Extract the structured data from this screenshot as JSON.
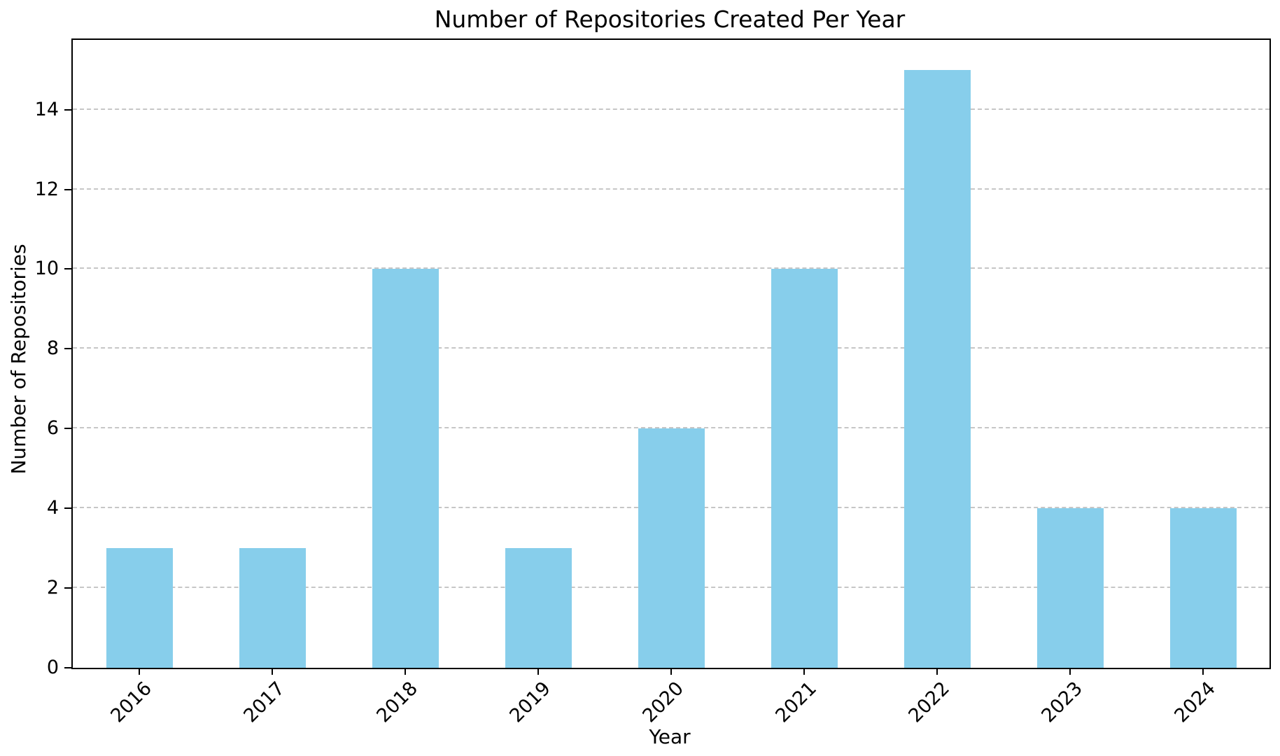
{
  "chart_data": {
    "type": "bar",
    "title": "Number of Repositories Created Per Year",
    "xlabel": "Year",
    "ylabel": "Number of Repositories",
    "categories": [
      "2016",
      "2017",
      "2018",
      "2019",
      "2020",
      "2021",
      "2022",
      "2023",
      "2024"
    ],
    "values": [
      3,
      3,
      10,
      3,
      6,
      10,
      15,
      4,
      4
    ],
    "ylim": [
      0,
      15.75
    ],
    "yticks": [
      0,
      2,
      4,
      6,
      8,
      10,
      12,
      14
    ],
    "bar_color": "#87CEEB",
    "grid": {
      "axis": "y",
      "style": "dashed",
      "color": "#c6c6c6"
    },
    "legend": "none",
    "background": "#ffffff",
    "spine_color": "#000000",
    "x_tick_label_rotation_deg": 45
  }
}
